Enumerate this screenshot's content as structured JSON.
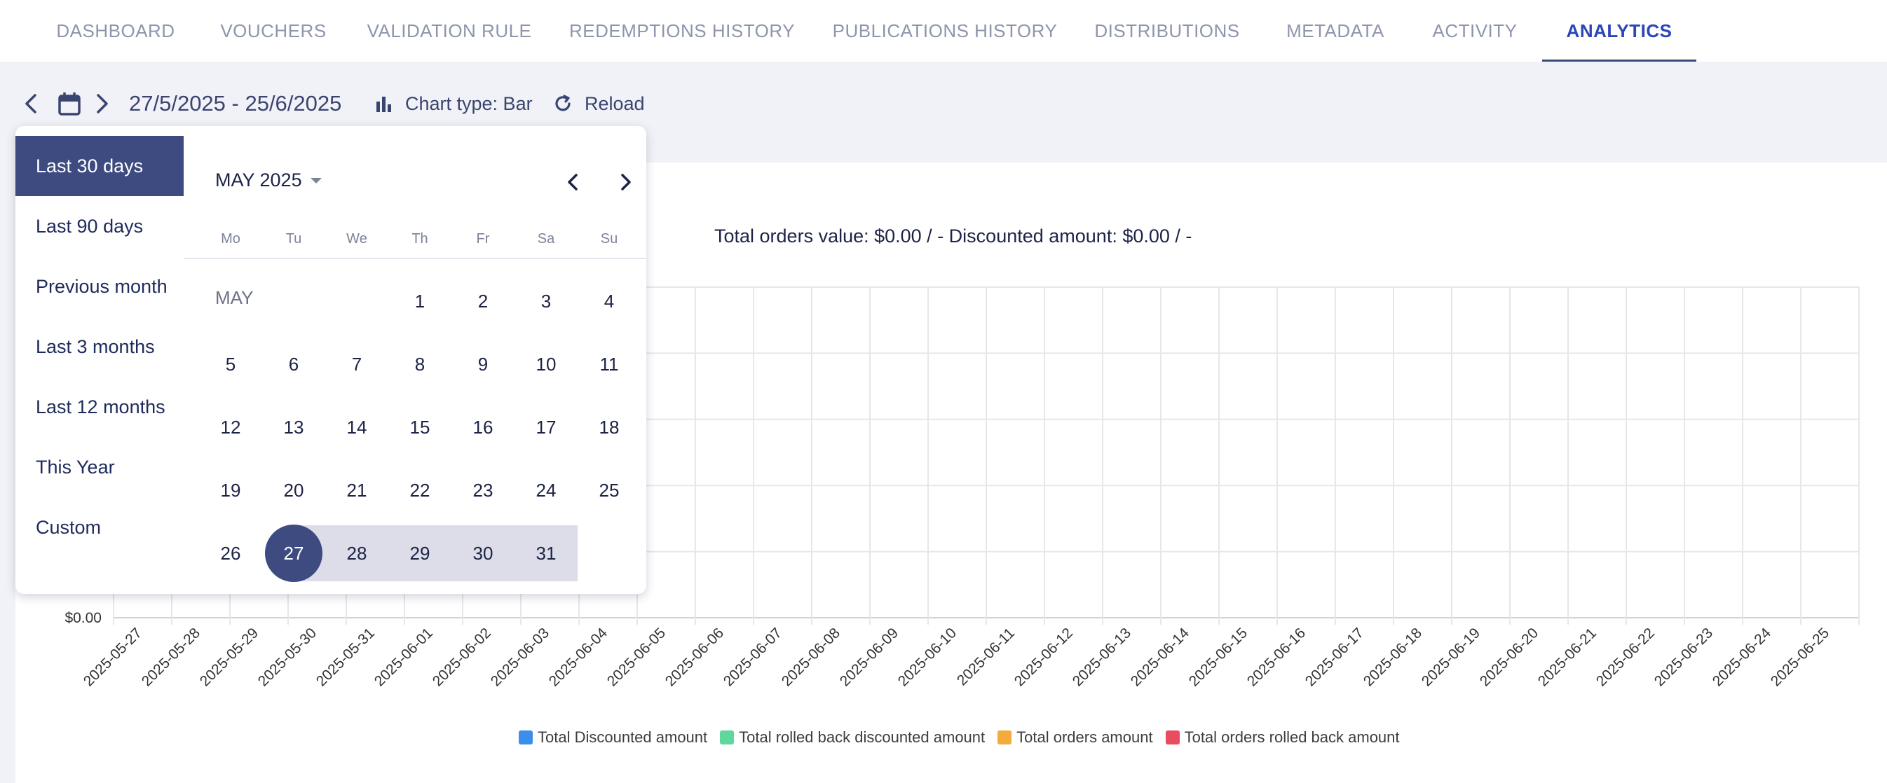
{
  "tabs": [
    {
      "label": "DASHBOARD"
    },
    {
      "label": "VOUCHERS"
    },
    {
      "label": "VALIDATION RULE"
    },
    {
      "label": "REDEMPTIONS HISTORY"
    },
    {
      "label": "PUBLICATIONS HISTORY"
    },
    {
      "label": "DISTRIBUTIONS"
    },
    {
      "label": "METADATA"
    },
    {
      "label": "ACTIVITY"
    },
    {
      "label": "ANALYTICS",
      "active": true
    }
  ],
  "toolbar": {
    "date_range": "27/5/2025 - 25/6/2025",
    "chart_type": "Chart type: Bar",
    "reload": "Reload"
  },
  "picker": {
    "presets": [
      {
        "label": "Last 30 days",
        "active": true
      },
      {
        "label": "Last 90 days"
      },
      {
        "label": "Previous month"
      },
      {
        "label": "Last 3 months"
      },
      {
        "label": "Last 12 months"
      },
      {
        "label": "This Year"
      },
      {
        "label": "Custom"
      }
    ],
    "month_title": "MAY 2025",
    "month_label": "MAY",
    "weekdays": [
      "Mo",
      "Tu",
      "We",
      "Th",
      "Fr",
      "Sa",
      "Su"
    ],
    "weeks": [
      [
        "",
        "",
        "",
        "1",
        "2",
        "3",
        "4"
      ],
      [
        "5",
        "6",
        "7",
        "8",
        "9",
        "10",
        "11"
      ],
      [
        "12",
        "13",
        "14",
        "15",
        "16",
        "17",
        "18"
      ],
      [
        "19",
        "20",
        "21",
        "22",
        "23",
        "24",
        "25"
      ],
      [
        "26",
        "27",
        "28",
        "29",
        "30",
        "31",
        ""
      ]
    ],
    "range_start": "27",
    "range_through": "31"
  },
  "chart_data": {
    "type": "bar",
    "summary": "Total orders value: $0.00 / - Discounted amount: $0.00 / -",
    "y_tick_label": "$0.00",
    "categories": [
      "2025-05-27",
      "2025-05-28",
      "2025-05-29",
      "2025-05-30",
      "2025-05-31",
      "2025-06-01",
      "2025-06-02",
      "2025-06-03",
      "2025-06-04",
      "2025-06-05",
      "2025-06-06",
      "2025-06-07",
      "2025-06-08",
      "2025-06-09",
      "2025-06-10",
      "2025-06-11",
      "2025-06-12",
      "2025-06-13",
      "2025-06-14",
      "2025-06-15",
      "2025-06-16",
      "2025-06-17",
      "2025-06-18",
      "2025-06-19",
      "2025-06-20",
      "2025-06-21",
      "2025-06-22",
      "2025-06-23",
      "2025-06-24",
      "2025-06-25"
    ],
    "series": [
      {
        "name": "Total Discounted amount",
        "color": "#3b8eea",
        "values": [
          0,
          0,
          0,
          0,
          0,
          0,
          0,
          0,
          0,
          0,
          0,
          0,
          0,
          0,
          0,
          0,
          0,
          0,
          0,
          0,
          0,
          0,
          0,
          0,
          0,
          0,
          0,
          0,
          0,
          0
        ]
      },
      {
        "name": "Total rolled back discounted amount",
        "color": "#5fd69c",
        "values": [
          0,
          0,
          0,
          0,
          0,
          0,
          0,
          0,
          0,
          0,
          0,
          0,
          0,
          0,
          0,
          0,
          0,
          0,
          0,
          0,
          0,
          0,
          0,
          0,
          0,
          0,
          0,
          0,
          0,
          0
        ]
      },
      {
        "name": "Total orders amount",
        "color": "#f2ac3d",
        "values": [
          0,
          0,
          0,
          0,
          0,
          0,
          0,
          0,
          0,
          0,
          0,
          0,
          0,
          0,
          0,
          0,
          0,
          0,
          0,
          0,
          0,
          0,
          0,
          0,
          0,
          0,
          0,
          0,
          0,
          0
        ]
      },
      {
        "name": "Total orders rolled back amount",
        "color": "#e94b60",
        "values": [
          0,
          0,
          0,
          0,
          0,
          0,
          0,
          0,
          0,
          0,
          0,
          0,
          0,
          0,
          0,
          0,
          0,
          0,
          0,
          0,
          0,
          0,
          0,
          0,
          0,
          0,
          0,
          0,
          0,
          0
        ]
      }
    ],
    "grid": true,
    "legend": "bottom"
  }
}
